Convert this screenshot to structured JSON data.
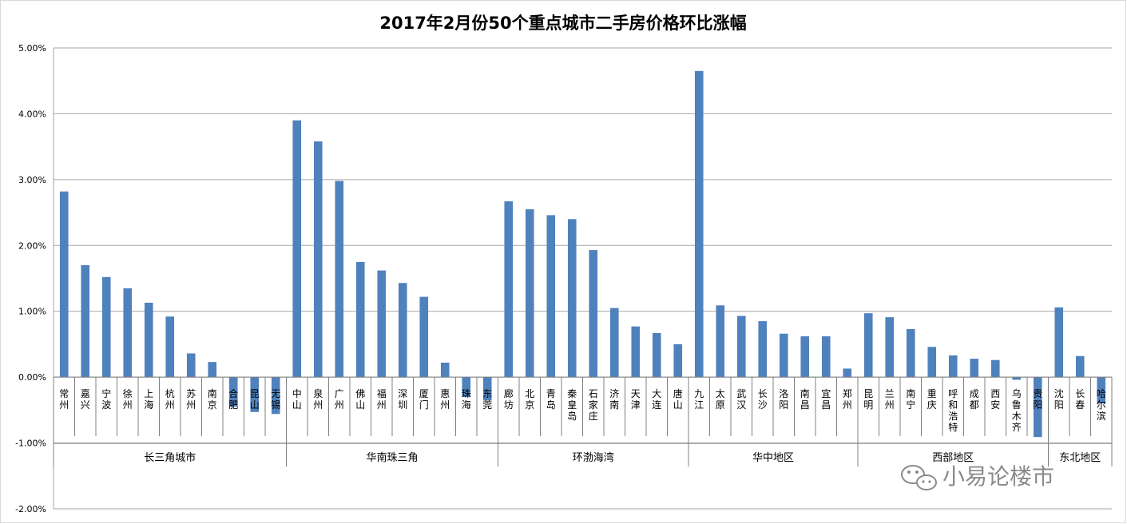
{
  "chart_data": {
    "type": "bar",
    "title": "2017年2月份50个重点城市二手房价格环比涨幅",
    "ylim": [
      -0.02,
      0.05
    ],
    "yticks": [
      "-2.00%",
      "-1.00%",
      "0.00%",
      "1.00%",
      "2.00%",
      "3.00%",
      "4.00%",
      "5.00%"
    ],
    "ytick_values": [
      -0.02,
      -0.01,
      0,
      0.01,
      0.02,
      0.03,
      0.04,
      0.05
    ],
    "grid": true,
    "bar_color": "#4F81BD",
    "groups": [
      {
        "name": "长三角城市",
        "count": 11
      },
      {
        "name": "华南珠三角",
        "count": 10
      },
      {
        "name": "环渤海湾",
        "count": 9
      },
      {
        "name": "华中地区",
        "count": 8
      },
      {
        "name": "西部地区",
        "count": 9
      },
      {
        "name": "东北地区",
        "count": 3
      }
    ],
    "categories": [
      "常州",
      "嘉兴",
      "宁波",
      "徐州",
      "上海",
      "杭州",
      "苏州",
      "南京",
      "合肥",
      "昆山",
      "无锡",
      "中山",
      "泉州",
      "广州",
      "佛山",
      "福州",
      "深圳",
      "厦门",
      "惠州",
      "珠海",
      "东莞",
      "廊坊",
      "北京",
      "青岛",
      "秦皇岛",
      "石家庄",
      "济南",
      "天津",
      "大连",
      "唐山",
      "九江",
      "太原",
      "武汉",
      "长沙",
      "洛阳",
      "南昌",
      "宜昌",
      "郑州",
      "昆明",
      "兰州",
      "南宁",
      "重庆",
      "呼和浩特",
      "成都",
      "西安",
      "乌鲁木齐",
      "贵阳",
      "沈阳",
      "长春",
      "哈尔滨"
    ],
    "values": [
      0.0282,
      0.017,
      0.0152,
      0.0135,
      0.0113,
      0.0092,
      0.0036,
      0.0023,
      -0.0045,
      -0.0053,
      -0.0056,
      0.039,
      0.0358,
      0.0298,
      0.0175,
      0.0162,
      0.0143,
      0.0122,
      0.0022,
      -0.003,
      -0.0035,
      0.0267,
      0.0255,
      0.0246,
      0.024,
      0.0193,
      0.0105,
      0.0077,
      0.0067,
      0.005,
      0.0465,
      0.0109,
      0.0093,
      0.0085,
      0.0066,
      0.0062,
      0.0062,
      0.0013,
      0.0097,
      0.0091,
      0.0073,
      0.0046,
      0.0033,
      0.0028,
      0.0026,
      -0.0004,
      -0.0091,
      0.0106,
      0.0032,
      -0.004
    ]
  },
  "watermark": {
    "text": "小易论楼市",
    "icon": "wechat-icon"
  }
}
